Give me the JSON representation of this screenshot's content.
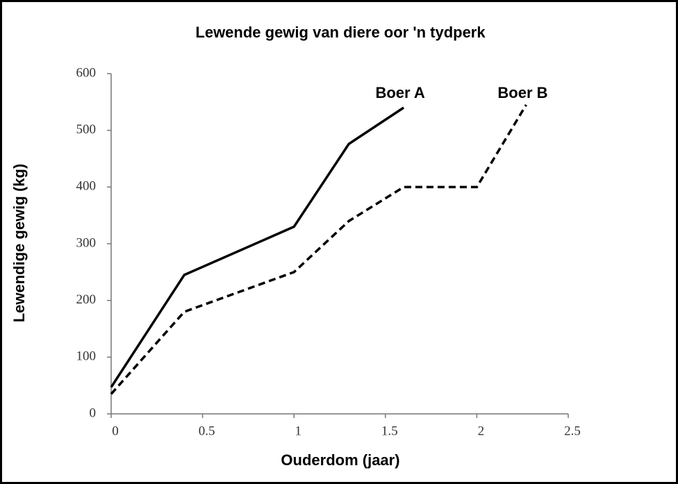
{
  "chart_data": {
    "type": "line",
    "title": "Lewende gewig van diere oor 'n tydperk",
    "x_label": "Ouderdom (jaar)",
    "y_label": "Lewendige gewig (kg)",
    "xlim": [
      0,
      2.5
    ],
    "xticks": [
      0,
      0.5,
      1,
      1.5,
      2,
      2.5
    ],
    "ylim": [
      0,
      600
    ],
    "yticks": [
      0,
      100,
      200,
      300,
      400,
      500,
      600
    ],
    "grid": false,
    "series": [
      {
        "name": "Boer A",
        "color": "#000000",
        "line_style": "solid",
        "x": [
          0,
          0.4,
          1,
          1.3,
          1.6
        ],
        "values": [
          47,
          245,
          330,
          476,
          540
        ]
      },
      {
        "name": "Boer B",
        "color": "#000000",
        "line_style": "dashed",
        "x": [
          0,
          0.4,
          1,
          1.3,
          1.6,
          2,
          2.27
        ],
        "values": [
          35,
          180,
          250,
          340,
          400,
          400,
          545
        ]
      }
    ]
  }
}
